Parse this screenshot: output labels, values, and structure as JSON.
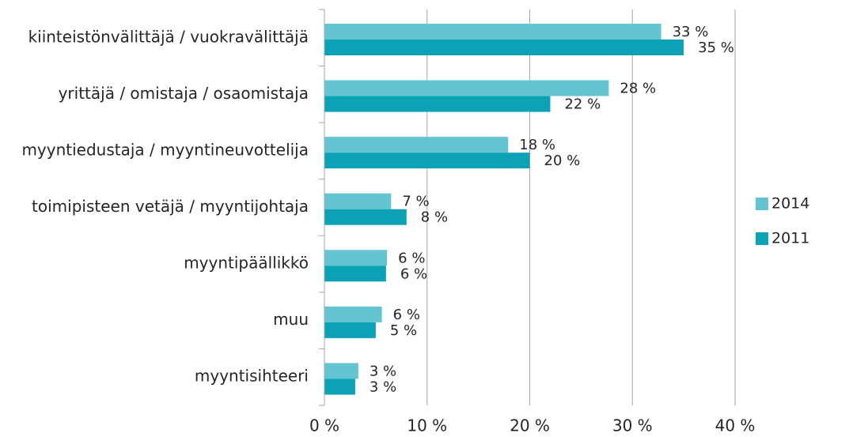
{
  "chart_data": {
    "type": "barh",
    "categories": [
      "kiinteistönvälittäjä / vuokravälittäjä",
      "yrittäjä / omistaja / osaomistaja",
      "myyntiedustaja / myyntineuvottelija",
      "toimipisteen vetäjä / myyntijohtaja",
      "myyntipäällikkö",
      "muu",
      "myyntisihteeri"
    ],
    "series": [
      {
        "name": "2014",
        "color": "#63c5d2",
        "values": [
          32.8,
          27.7,
          17.9,
          6.5,
          6.1,
          5.6,
          3.3
        ],
        "value_labels": [
          "33 %",
          "28 %",
          "18 %",
          "7 %",
          "6 %",
          "6 %",
          "3 %"
        ]
      },
      {
        "name": "2011",
        "color": "#0aa2b4",
        "values": [
          35.0,
          22.0,
          20.0,
          8.0,
          6.0,
          5.0,
          3.0
        ],
        "value_labels": [
          "35 %",
          "22 %",
          "20 %",
          "8 %",
          "6 %",
          "5 %",
          "3 %"
        ]
      }
    ],
    "xlim": [
      0,
      40
    ],
    "xticks": [
      {
        "value": 0,
        "label": "0 %"
      },
      {
        "value": 10,
        "label": "10 %"
      },
      {
        "value": 20,
        "label": "20 %"
      },
      {
        "value": 30,
        "label": "30 %"
      },
      {
        "value": 40,
        "label": "40 %"
      }
    ],
    "grid": true,
    "legend": "right"
  }
}
